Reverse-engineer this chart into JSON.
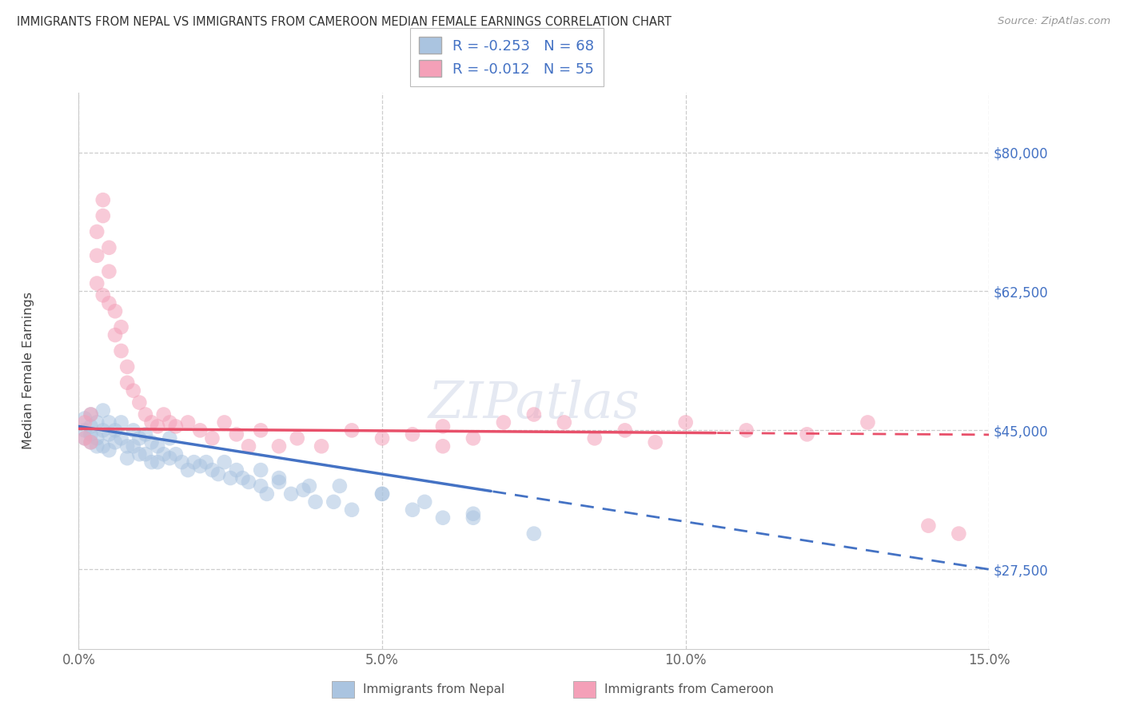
{
  "title": "IMMIGRANTS FROM NEPAL VS IMMIGRANTS FROM CAMEROON MEDIAN FEMALE EARNINGS CORRELATION CHART",
  "source": "Source: ZipAtlas.com",
  "ylabel": "Median Female Earnings",
  "x_min": 0.0,
  "x_max": 0.15,
  "y_min": 17500,
  "y_max": 87500,
  "yticks": [
    27500,
    45000,
    62500,
    80000
  ],
  "ytick_labels": [
    "$27,500",
    "$45,000",
    "$62,500",
    "$80,000"
  ],
  "xticks": [
    0.0,
    0.05,
    0.1,
    0.15
  ],
  "xtick_labels": [
    "0.0%",
    "5.0%",
    "10.0%",
    "15.0%"
  ],
  "nepal_color": "#aac4e0",
  "cameroon_color": "#f4a0b8",
  "trend_nepal": "#4472c4",
  "trend_cameroon": "#e8506a",
  "legend_R_nepal": "R = -0.253",
  "legend_N_nepal": "N = 68",
  "legend_R_cameroon": "R = -0.012",
  "legend_N_cameroon": "N = 55",
  "watermark": "ZIPatlas",
  "nepal_x": [
    0.001,
    0.001,
    0.001,
    0.002,
    0.002,
    0.002,
    0.002,
    0.003,
    0.003,
    0.003,
    0.004,
    0.004,
    0.004,
    0.005,
    0.005,
    0.005,
    0.006,
    0.006,
    0.007,
    0.007,
    0.008,
    0.008,
    0.009,
    0.009,
    0.01,
    0.01,
    0.011,
    0.011,
    0.012,
    0.012,
    0.013,
    0.013,
    0.014,
    0.015,
    0.015,
    0.016,
    0.017,
    0.018,
    0.019,
    0.02,
    0.021,
    0.022,
    0.023,
    0.024,
    0.025,
    0.026,
    0.027,
    0.028,
    0.03,
    0.031,
    0.033,
    0.035,
    0.037,
    0.039,
    0.042,
    0.045,
    0.05,
    0.055,
    0.06,
    0.065,
    0.03,
    0.033,
    0.038,
    0.043,
    0.05,
    0.057,
    0.065,
    0.075
  ],
  "nepal_y": [
    45000,
    46500,
    44000,
    47000,
    45500,
    43500,
    44500,
    46000,
    44000,
    43000,
    47500,
    45000,
    43000,
    46000,
    44500,
    42500,
    45000,
    43500,
    46000,
    44000,
    43000,
    41500,
    45000,
    43000,
    44000,
    42000,
    44500,
    42000,
    43500,
    41000,
    43000,
    41000,
    42000,
    44000,
    41500,
    42000,
    41000,
    40000,
    41000,
    40500,
    41000,
    40000,
    39500,
    41000,
    39000,
    40000,
    39000,
    38500,
    38000,
    37000,
    38500,
    37000,
    37500,
    36000,
    36000,
    35000,
    37000,
    35000,
    34000,
    34500,
    40000,
    39000,
    38000,
    38000,
    37000,
    36000,
    34000,
    32000
  ],
  "cameroon_x": [
    0.001,
    0.001,
    0.002,
    0.002,
    0.003,
    0.003,
    0.004,
    0.004,
    0.005,
    0.005,
    0.006,
    0.006,
    0.007,
    0.008,
    0.008,
    0.009,
    0.01,
    0.011,
    0.012,
    0.013,
    0.014,
    0.015,
    0.016,
    0.018,
    0.02,
    0.022,
    0.024,
    0.026,
    0.028,
    0.03,
    0.033,
    0.036,
    0.04,
    0.045,
    0.05,
    0.055,
    0.06,
    0.065,
    0.07,
    0.075,
    0.08,
    0.085,
    0.09,
    0.095,
    0.1,
    0.11,
    0.12,
    0.13,
    0.14,
    0.145,
    0.003,
    0.004,
    0.005,
    0.007,
    0.06
  ],
  "cameroon_y": [
    46000,
    44000,
    47000,
    43500,
    70000,
    67000,
    74000,
    72000,
    68000,
    65000,
    60000,
    57000,
    55000,
    53000,
    51000,
    50000,
    48500,
    47000,
    46000,
    45500,
    47000,
    46000,
    45500,
    46000,
    45000,
    44000,
    46000,
    44500,
    43000,
    45000,
    43000,
    44000,
    43000,
    45000,
    44000,
    44500,
    45500,
    44000,
    46000,
    47000,
    46000,
    44000,
    45000,
    43500,
    46000,
    45000,
    44500,
    46000,
    33000,
    32000,
    63500,
    62000,
    61000,
    58000,
    43000
  ],
  "nepal_trend_solid_end": 0.068,
  "cameroon_trend_solid_end": 0.105,
  "nepal_trend_y0": 45500,
  "nepal_trend_slope": -120000,
  "cameroon_trend_y0": 45200,
  "cameroon_trend_slope": -5000
}
